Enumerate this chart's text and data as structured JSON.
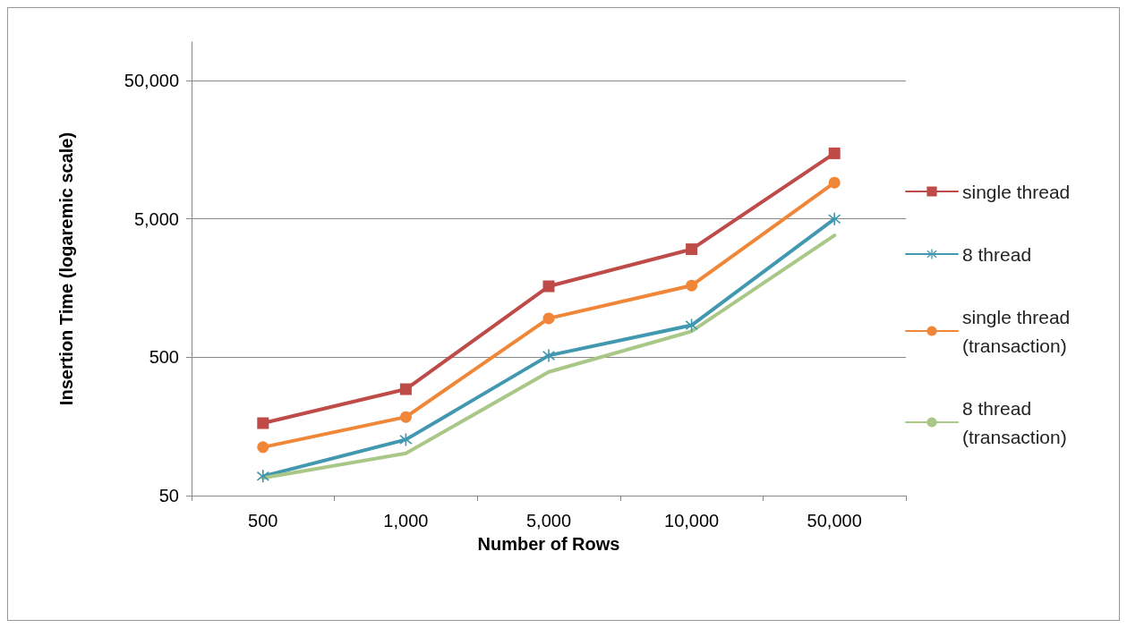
{
  "chart_data": {
    "type": "line",
    "xlabel": "Number of Rows",
    "ylabel": "Insertion Time (logaremic scale)",
    "categories": [
      "500",
      "1,000",
      "5,000",
      "10,000",
      "50,000"
    ],
    "series": [
      {
        "name": "single thread",
        "color": "#be4b48",
        "marker": "square",
        "values": [
          167,
          294,
          1630,
          3020,
          14900
        ]
      },
      {
        "name": "8 thread",
        "color": "#4198af",
        "marker": "cross",
        "values": [
          69,
          127,
          515,
          852,
          5000
        ]
      },
      {
        "name": "single thread (transaction)",
        "color": "#f08637",
        "marker": "circle",
        "values": [
          112,
          185,
          955,
          1650,
          9150
        ]
      },
      {
        "name": "8 thread (transaction)",
        "color": "#a9c786",
        "marker": "none",
        "values": [
          67,
          101,
          392,
          770,
          3800
        ]
      }
    ],
    "log": "y",
    "ylim": [
      50,
      95000
    ],
    "yticks": [
      50,
      500,
      {
        "value": 5000,
        "label": "5,000"
      },
      {
        "value": 50000,
        "label": "50,000"
      }
    ],
    "grid": "y",
    "legend": "right"
  }
}
